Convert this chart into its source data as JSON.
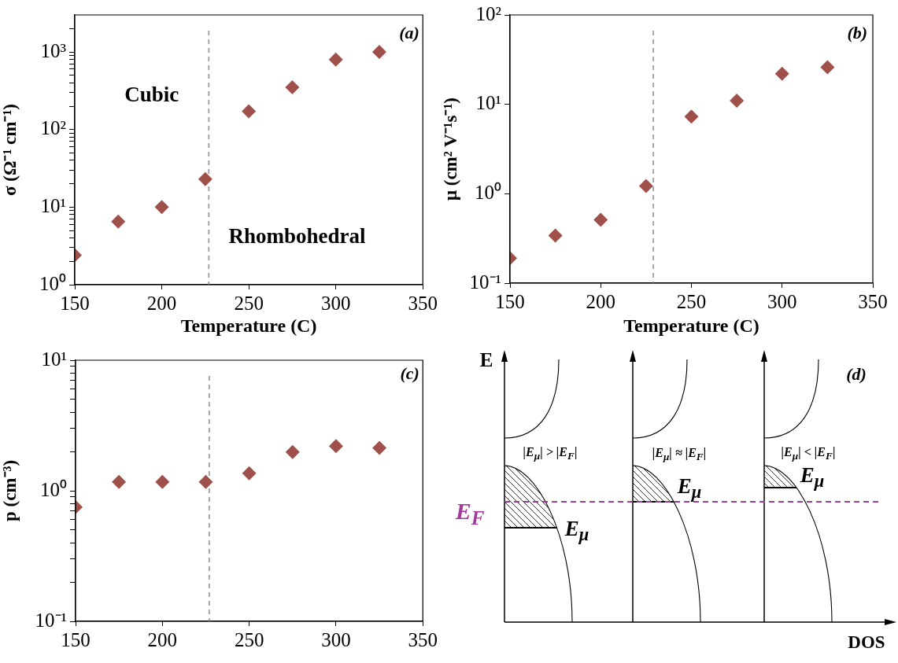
{
  "chart_data": [
    {
      "type": "scatter",
      "xlabel": "Temperature (C)",
      "ylabel": "σ (Ω⁻¹ cm⁻¹)",
      "annotations": [
        "(a)",
        "Cubic",
        "Rhombohedral"
      ],
      "x": [
        150,
        175,
        200,
        225,
        250,
        275,
        300,
        325
      ],
      "values": [
        2.4,
        6.5,
        10,
        23,
        172,
        350,
        800,
        1000
      ],
      "color": "#a0504a",
      "marker": "diamond",
      "log": "y",
      "xlim": [
        150,
        350
      ],
      "xticks": [
        150,
        200,
        250,
        300,
        350
      ],
      "ylim": [
        1,
        3000
      ],
      "yticks": [
        {
          "value": 1,
          "label": "10⁰"
        },
        {
          "value": 2,
          "label": null
        },
        {
          "value": 3,
          "label": null
        },
        {
          "value": 4,
          "label": null
        },
        {
          "value": 5,
          "label": null
        },
        {
          "value": 6,
          "label": null
        },
        {
          "value": 7,
          "label": null
        },
        {
          "value": 8,
          "label": null
        },
        {
          "value": 9,
          "label": null
        },
        {
          "value": 10,
          "label": "10¹"
        },
        {
          "value": 20,
          "label": null
        },
        {
          "value": 30,
          "label": null
        },
        {
          "value": 40,
          "label": null
        },
        {
          "value": 50,
          "label": null
        },
        {
          "value": 60,
          "label": null
        },
        {
          "value": 70,
          "label": null
        },
        {
          "value": 80,
          "label": null
        },
        {
          "value": 90,
          "label": null
        },
        {
          "value": 100,
          "label": "10²"
        },
        {
          "value": 200,
          "label": null
        },
        {
          "value": 300,
          "label": null
        },
        {
          "value": 400,
          "label": null
        },
        {
          "value": 500,
          "label": null
        },
        {
          "value": 600,
          "label": null
        },
        {
          "value": 700,
          "label": null
        },
        {
          "value": 800,
          "label": null
        },
        {
          "value": 900,
          "label": null
        },
        {
          "value": 1000,
          "label": "10³"
        },
        {
          "value": 2000,
          "label": null
        }
      ],
      "ref_lines": [
        {
          "axis": "x",
          "value": 227,
          "color": "#a6a6a6",
          "line_style": "dashed"
        }
      ]
    },
    {
      "type": "scatter",
      "xlabel": "Temperature (C)",
      "ylabel": "μ (cm² V⁻¹s⁻¹)",
      "annotations": [
        "(b)"
      ],
      "x": [
        150,
        175,
        200,
        225,
        250,
        275,
        300,
        325
      ],
      "values": [
        0.19,
        0.34,
        0.51,
        1.22,
        7.3,
        11,
        22,
        26
      ],
      "color": "#a0504a",
      "marker": "diamond",
      "log": "y",
      "xlim": [
        150,
        350
      ],
      "xticks": [
        150,
        200,
        250,
        300,
        350
      ],
      "ylim": [
        0.1,
        100
      ],
      "yticks": [
        {
          "value": 0.1,
          "label": "10⁻¹"
        },
        {
          "value": 1,
          "label": "10⁰"
        },
        {
          "value": 10,
          "label": "10¹"
        },
        {
          "value": 100,
          "label": "10²"
        }
      ],
      "ref_lines": [
        {
          "axis": "x",
          "value": 229,
          "color": "#a6a6a6",
          "line_style": "dashed"
        }
      ]
    },
    {
      "type": "scatter",
      "ylabel": "p (cm⁻³)",
      "annotations": [
        "(c)"
      ],
      "x": [
        150,
        175,
        200,
        225,
        250,
        275,
        300,
        325
      ],
      "values": [
        0.75,
        1.17,
        1.17,
        1.17,
        1.36,
        1.98,
        2.2,
        2.13
      ],
      "color": "#a0504a",
      "marker": "diamond",
      "log": "y",
      "xlim": [
        150,
        350
      ],
      "xticks": [
        150,
        200,
        250,
        300,
        350
      ],
      "ylim": [
        0.1,
        10
      ],
      "yticks": [
        {
          "value": 0.1,
          "label": "10⁻¹"
        },
        {
          "value": 0.2,
          "label": null
        },
        {
          "value": 0.3,
          "label": null
        },
        {
          "value": 0.4,
          "label": null
        },
        {
          "value": 0.5,
          "label": null
        },
        {
          "value": 0.6,
          "label": null
        },
        {
          "value": 0.7,
          "label": null
        },
        {
          "value": 0.8,
          "label": null
        },
        {
          "value": 0.9,
          "label": null
        },
        {
          "value": 1,
          "label": "10⁰"
        },
        {
          "value": 2,
          "label": null
        },
        {
          "value": 3,
          "label": null
        },
        {
          "value": 4,
          "label": null
        },
        {
          "value": 5,
          "label": null
        },
        {
          "value": 6,
          "label": null
        },
        {
          "value": 7,
          "label": null
        },
        {
          "value": 8,
          "label": null
        },
        {
          "value": 9,
          "label": null
        },
        {
          "value": 10,
          "label": "10¹"
        }
      ],
      "ref_lines": [
        {
          "axis": "x",
          "value": 227,
          "color": "#a6a6a6",
          "line_style": "dashed"
        }
      ]
    },
    {
      "type": "other",
      "annotations": [
        "(d)",
        "E",
        "|E$_{μ}$| > |E$_{F}$|",
        "|E$_{μ}$| ≈ |E$_{F}$|",
        "|E$_{μ}$| < |E$_{F}$|",
        "E$_{F}$",
        "E$_{μ}$",
        "E$_{μ}$",
        "E$_{μ}$",
        "DOS"
      ]
    }
  ]
}
